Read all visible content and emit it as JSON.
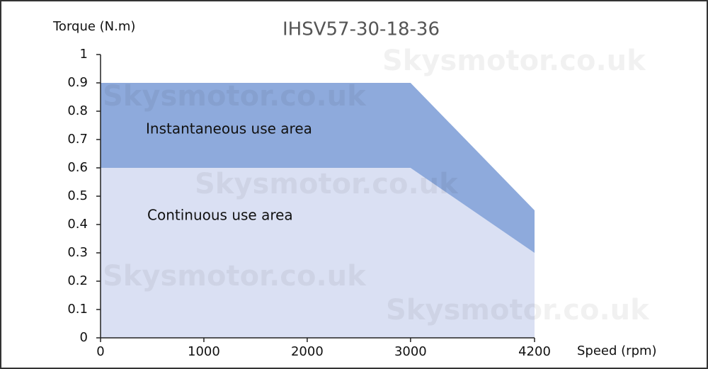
{
  "chart_data": {
    "type": "area",
    "title": "IHSV57-30-18-36",
    "y_label": "Torque (N.m)",
    "x_label": "Speed (rpm)",
    "watermark": "Skysmotor.co.uk",
    "x": [
      0,
      3000,
      4200
    ],
    "series": [
      {
        "name": "Instantaneous use area",
        "color": "#8eaadc",
        "values": [
          0.9,
          0.9,
          0.45
        ]
      },
      {
        "name": "Continuous use area",
        "color": "#dae0f3",
        "values": [
          0.6,
          0.6,
          0.3
        ]
      }
    ],
    "xlim": [
      0,
      4200
    ],
    "xticks": [
      0,
      1000,
      2000,
      3000,
      4200
    ],
    "ylim": [
      0,
      1
    ],
    "yticks": [
      0,
      0.1,
      0.2,
      0.3,
      0.4,
      0.5,
      0.6,
      0.7,
      0.8,
      0.9,
      1
    ]
  }
}
